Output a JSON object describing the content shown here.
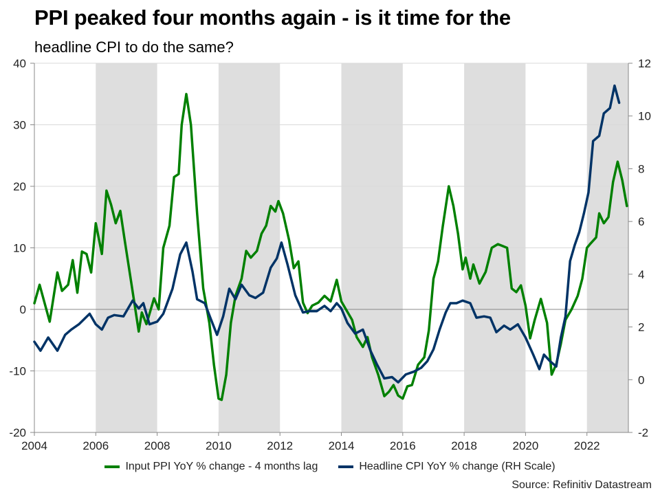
{
  "header": {
    "title": "PPI peaked four months again - is it time for the",
    "subtitle": "headline CPI to do the same?"
  },
  "footer": {
    "source": "Source: Refinitiv Datastream"
  },
  "colors": {
    "ppi": "#008000",
    "cpi": "#003366",
    "band": "#dedede",
    "grid": "#d9d9d9",
    "axis": "#888888"
  },
  "chart_data": {
    "type": "line",
    "title": "PPI peaked four months again - is it time for the headline CPI to do the same?",
    "xlabel": "",
    "xlim": [
      2004,
      2023.35
    ],
    "x_ticks": [
      "2004",
      "2006",
      "2008",
      "2010",
      "2012",
      "2014",
      "2016",
      "2018",
      "2020",
      "2022"
    ],
    "x_tick_values": [
      2004,
      2006,
      2008,
      2010,
      2012,
      2014,
      2016,
      2018,
      2020,
      2022
    ],
    "left_axis": {
      "ylim": [
        -20,
        40
      ],
      "ticks": [
        "-20",
        "-10",
        "0",
        "10",
        "20",
        "30",
        "40"
      ],
      "tick_values": [
        -20,
        -10,
        0,
        10,
        20,
        30,
        40
      ]
    },
    "right_axis": {
      "ylim": [
        -2,
        12
      ],
      "ticks": [
        "-2",
        "0",
        "2",
        "4",
        "6",
        "8",
        "10",
        "12"
      ],
      "tick_values": [
        -2,
        0,
        2,
        4,
        6,
        8,
        10,
        12
      ]
    },
    "grid": true,
    "shaded_periods": [
      [
        2006,
        2008
      ],
      [
        2010,
        2012
      ],
      [
        2014,
        2016
      ],
      [
        2018,
        2020
      ],
      [
        2022,
        2023.35
      ]
    ],
    "legend_position": "bottom",
    "series": [
      {
        "name": "Input PPI YoY % change - 4 months lag",
        "axis": "left",
        "x": [
          2004.0,
          2004.17,
          2004.5,
          2004.75,
          2004.9,
          2005.1,
          2005.25,
          2005.4,
          2005.55,
          2005.7,
          2005.85,
          2006.0,
          2006.2,
          2006.35,
          2006.5,
          2006.65,
          2006.8,
          2006.95,
          2007.15,
          2007.4,
          2007.5,
          2007.65,
          2007.9,
          2008.05,
          2008.2,
          2008.4,
          2008.55,
          2008.7,
          2008.8,
          2008.95,
          2009.1,
          2009.3,
          2009.5,
          2009.7,
          2009.85,
          2010.0,
          2010.1,
          2010.25,
          2010.4,
          2010.55,
          2010.75,
          2010.9,
          2011.05,
          2011.25,
          2011.4,
          2011.55,
          2011.7,
          2011.85,
          2011.95,
          2012.1,
          2012.3,
          2012.45,
          2012.6,
          2012.75,
          2012.9,
          2013.05,
          2013.25,
          2013.45,
          2013.65,
          2013.85,
          2014.0,
          2014.15,
          2014.35,
          2014.5,
          2014.7,
          2014.85,
          2015.0,
          2015.2,
          2015.4,
          2015.55,
          2015.7,
          2015.85,
          2016.0,
          2016.15,
          2016.3,
          2016.5,
          2016.7,
          2016.85,
          2017.0,
          2017.15,
          2017.3,
          2017.5,
          2017.65,
          2017.8,
          2017.95,
          2018.05,
          2018.2,
          2018.3,
          2018.5,
          2018.7,
          2018.9,
          2019.1,
          2019.25,
          2019.4,
          2019.55,
          2019.7,
          2019.85,
          2020.0,
          2020.15,
          2020.3,
          2020.5,
          2020.7,
          2020.85,
          2021.0,
          2021.15,
          2021.3,
          2021.5,
          2021.7,
          2021.85,
          2022.0,
          2022.1,
          2022.3,
          2022.4,
          2022.55,
          2022.7,
          2022.85,
          2023.0,
          2023.15,
          2023.3
        ],
        "values": [
          1,
          4,
          -2,
          6,
          3,
          4,
          8,
          2.7,
          9.4,
          9,
          6,
          14,
          9,
          19.3,
          17,
          14,
          16,
          11,
          4.5,
          -3.6,
          -0.5,
          -2.4,
          1.8,
          0,
          10,
          13.6,
          21.5,
          22,
          30,
          35,
          30,
          15.6,
          3.4,
          -2.2,
          -9,
          -14.5,
          -14.7,
          -10.6,
          -2.2,
          2.2,
          5,
          9.5,
          8.4,
          9.5,
          12.3,
          13.6,
          16.8,
          15.9,
          17.6,
          15.6,
          11.2,
          6.7,
          7.8,
          1.1,
          -0.6,
          0.6,
          1.1,
          2.2,
          1.3,
          4.8,
          1.3,
          0,
          -1.7,
          -4.5,
          -6.1,
          -4.5,
          -7.8,
          -10.6,
          -14.1,
          -13.4,
          -12.3,
          -14,
          -14.5,
          -12.5,
          -12.3,
          -9,
          -7.8,
          -3.4,
          5,
          7.8,
          13.4,
          20,
          16.8,
          12.3,
          6.5,
          8.4,
          5,
          7.3,
          4.2,
          6.1,
          10,
          10.6,
          10.3,
          10,
          3.4,
          2.8,
          3.9,
          0.6,
          -4.7,
          -1.7,
          1.7,
          -2.2,
          -10.6,
          -8.9,
          -5.6,
          -1.7,
          0,
          2.2,
          5,
          10,
          10.6,
          11.7,
          15.6,
          14,
          15,
          20.7,
          24,
          21,
          16.8
        ]
      },
      {
        "name": "Headline CPI YoY % change (RH Scale)",
        "axis": "right",
        "x": [
          2004.0,
          2004.2,
          2004.45,
          2004.75,
          2005.0,
          2005.2,
          2005.45,
          2005.8,
          2006.0,
          2006.2,
          2006.4,
          2006.6,
          2006.9,
          2007.2,
          2007.4,
          2007.55,
          2007.75,
          2008.0,
          2008.2,
          2008.5,
          2008.75,
          2008.95,
          2009.15,
          2009.3,
          2009.55,
          2009.75,
          2009.95,
          2010.15,
          2010.35,
          2010.55,
          2010.75,
          2011.0,
          2011.2,
          2011.45,
          2011.7,
          2011.9,
          2012.05,
          2012.25,
          2012.5,
          2012.75,
          2012.95,
          2013.2,
          2013.45,
          2013.65,
          2013.85,
          2014.0,
          2014.2,
          2014.45,
          2014.7,
          2014.95,
          2015.15,
          2015.4,
          2015.65,
          2015.85,
          2016.1,
          2016.35,
          2016.6,
          2016.8,
          2017.0,
          2017.2,
          2017.4,
          2017.55,
          2017.75,
          2017.95,
          2018.2,
          2018.4,
          2018.65,
          2018.85,
          2019.05,
          2019.3,
          2019.5,
          2019.75,
          2020.0,
          2020.25,
          2020.45,
          2020.6,
          2020.8,
          2021.0,
          2021.15,
          2021.3,
          2021.45,
          2021.6,
          2021.75,
          2021.9,
          2022.05,
          2022.2,
          2022.4,
          2022.55,
          2022.75,
          2022.9,
          2023.05
        ],
        "values": [
          1.44,
          1.1,
          1.6,
          1.1,
          1.7,
          1.9,
          2.1,
          2.5,
          2.1,
          1.9,
          2.35,
          2.45,
          2.4,
          3.0,
          2.7,
          2.9,
          2.1,
          2.2,
          2.5,
          3.45,
          4.75,
          5.2,
          4.1,
          3.05,
          2.9,
          2.3,
          1.7,
          2.4,
          3.45,
          3.05,
          3.6,
          3.2,
          3.1,
          3.3,
          4.25,
          4.6,
          5.2,
          4.35,
          3.2,
          2.55,
          2.6,
          2.6,
          2.8,
          2.6,
          2.9,
          2.7,
          2.15,
          1.75,
          1.9,
          1.1,
          0.6,
          0.05,
          0.1,
          -0.1,
          0.2,
          0.3,
          0.45,
          0.7,
          1.15,
          1.9,
          2.55,
          2.9,
          2.9,
          3.0,
          2.9,
          2.35,
          2.4,
          2.35,
          1.8,
          2.05,
          1.9,
          2.1,
          1.6,
          0.95,
          0.4,
          0.95,
          0.7,
          0.5,
          1.6,
          2.4,
          4.5,
          5.1,
          5.6,
          6.3,
          7.1,
          9.05,
          9.25,
          10.1,
          10.3,
          11.15,
          10.5
        ]
      }
    ]
  }
}
